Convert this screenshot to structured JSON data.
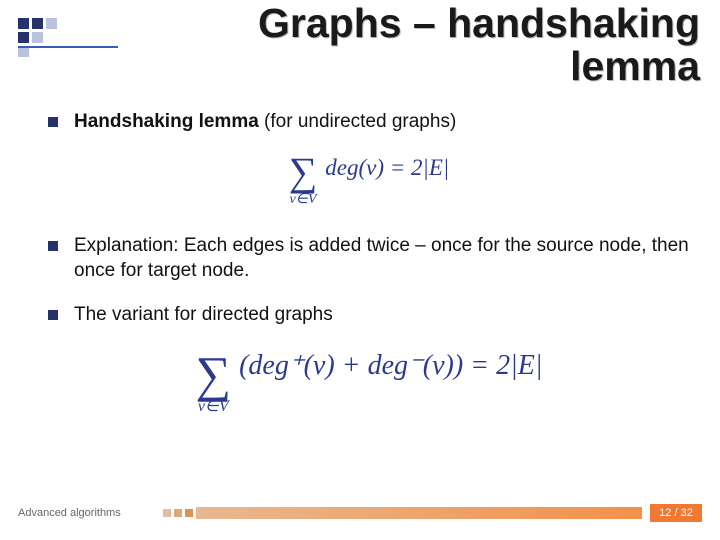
{
  "colors": {
    "logo_dark": "#26336b",
    "logo_light": "#b9c3dd",
    "bullet": "#26336b",
    "title_rule": "#3b5bb5",
    "formula": "#2b3a8f",
    "footer_sq1": "#e0bfa0",
    "footer_sq2": "#e0a878",
    "footer_sq3": "#e09050",
    "footer_bar_start": "#e8b890",
    "footer_bar_end": "#f2914a",
    "page_badge_bg": "#f07830",
    "page_badge_text": "#ffffff"
  },
  "title": "Graphs – handshaking lemma",
  "bullets": [
    {
      "html": "<b>Handshaking lemma</b> (for undirected graphs)"
    },
    {
      "html": "Explanation: Each edges is added twice – once for the source node, then once for target node."
    },
    {
      "html": "The variant for directed graphs"
    }
  ],
  "formulas": {
    "undirected": {
      "subscript": "v∈V",
      "body": "deg(v) = 2|E|"
    },
    "directed": {
      "subscript": "v∈V",
      "body": "(deg⁺(v) + deg⁻(v)) = 2|E|"
    }
  },
  "footer": {
    "label": "Advanced algorithms",
    "page": "12 / 32"
  },
  "typography": {
    "title_fontsize": 41,
    "body_fontsize": 19,
    "footer_fontsize": 11
  }
}
